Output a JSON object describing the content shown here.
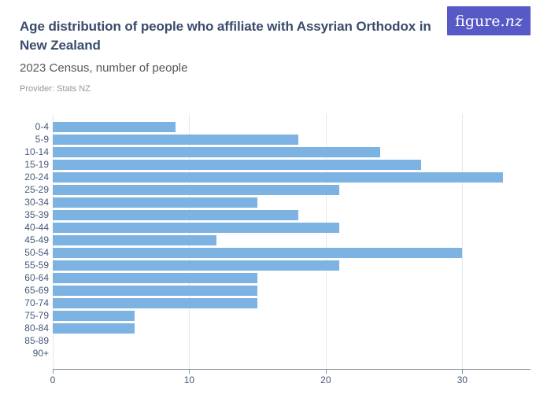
{
  "header": {
    "title": "Age distribution of people who affiliate with Assyrian Orthodox in New Zealand",
    "subtitle": "2023 Census, number of people",
    "provider": "Provider: Stats NZ"
  },
  "logo": {
    "prefix": "figure.",
    "suffix": "nz"
  },
  "colors": {
    "bar": "#7db3e2",
    "title_text": "#3a4c6b",
    "subtitle_text": "#54585d",
    "provider_text": "#94989c",
    "axis_text": "#47597a",
    "grid": "#e6e8ea",
    "axis_line": "#8a93a0",
    "logo_bg": "#5759c7",
    "page_bg": "#ffffff"
  },
  "chart_data": {
    "type": "bar",
    "orientation": "horizontal",
    "title": "Age distribution of people who affiliate with Assyrian Orthodox in New Zealand",
    "subtitle": "2023 Census, number of people",
    "xlabel": "",
    "ylabel": "",
    "categories": [
      "0-4",
      "5-9",
      "10-14",
      "15-19",
      "20-24",
      "25-29",
      "30-34",
      "35-39",
      "40-44",
      "45-49",
      "50-54",
      "55-59",
      "60-64",
      "65-69",
      "70-74",
      "75-79",
      "80-84",
      "85-89",
      "90+"
    ],
    "values": [
      9,
      18,
      24,
      27,
      33,
      21,
      15,
      18,
      21,
      12,
      30,
      21,
      15,
      15,
      15,
      6,
      6,
      0,
      0
    ],
    "xlim": [
      0,
      35
    ],
    "xticks": [
      0,
      10,
      20,
      30
    ],
    "grid": true,
    "legend": false
  }
}
